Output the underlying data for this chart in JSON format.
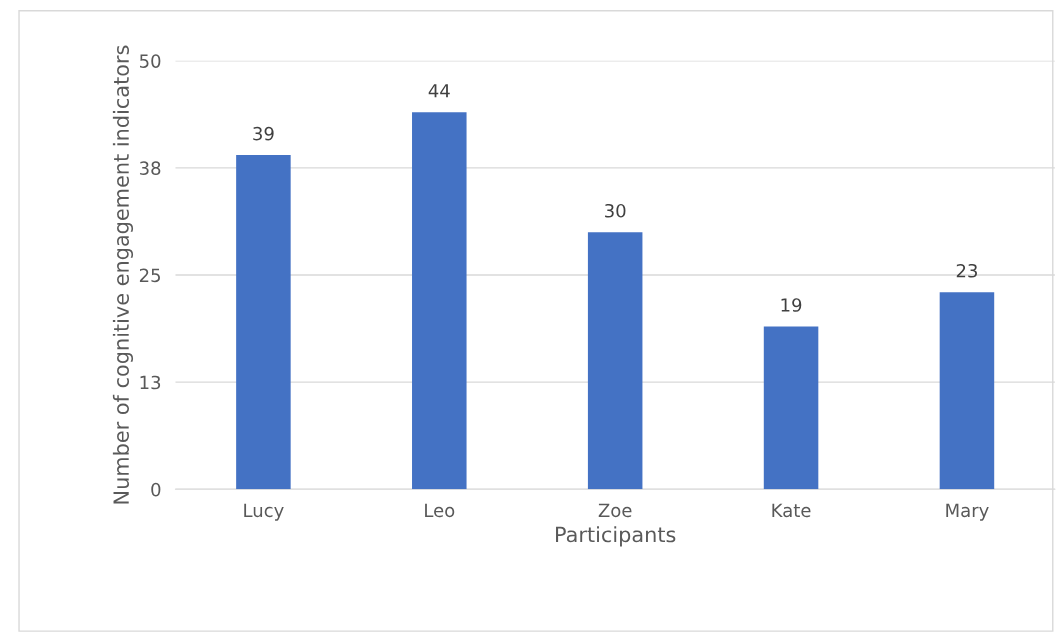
{
  "chart_data": {
    "type": "bar",
    "xlabel": "Participants",
    "ylabel": "Number of cognitive engagement indicators",
    "categories": [
      "Lucy",
      "Leo",
      "Zoe",
      "Kate",
      "Mary"
    ],
    "values": [
      39,
      44,
      30,
      19,
      23
    ],
    "color": "#4472c4",
    "ylim": [
      0,
      50
    ],
    "yticks": [
      0,
      {
        "value": 12.5,
        "label": "13"
      },
      25,
      {
        "value": 37.5,
        "label": "38"
      },
      50
    ],
    "grid": "y",
    "data_labels": true
  }
}
